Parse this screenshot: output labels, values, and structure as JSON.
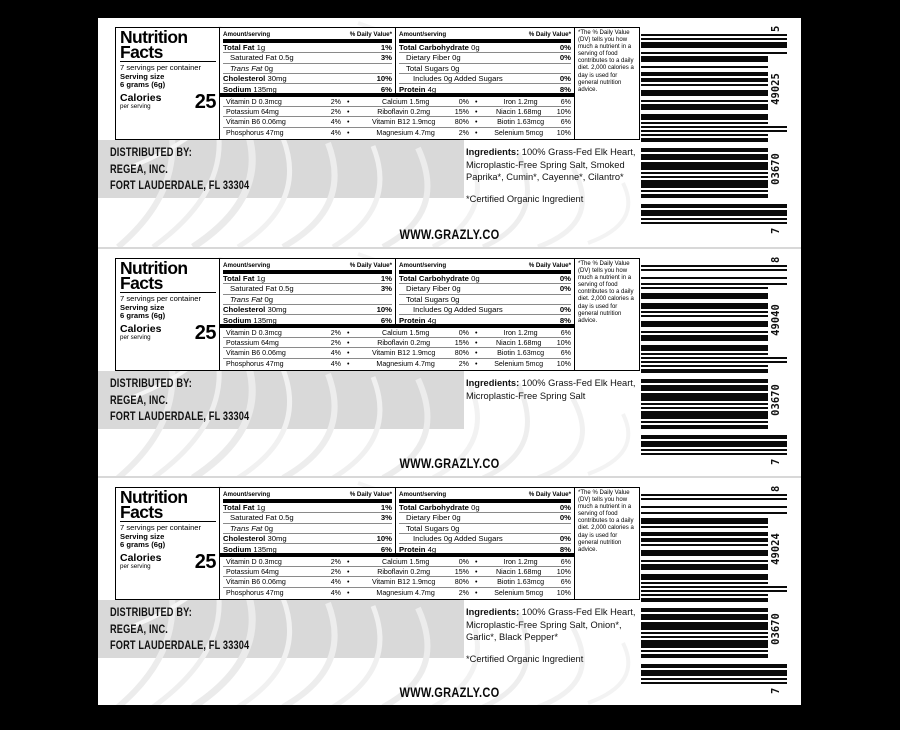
{
  "website": "WWW.GRAZLY.CO",
  "distributor": [
    "DISTRIBUTED BY:",
    "REGEA, INC.",
    "FORT LAUDERDALE, FL 33304"
  ],
  "ingredients_label": "Ingredients:",
  "nutrition": {
    "title1": "Nutrition",
    "title2": "Facts",
    "servings": "7 servings per container",
    "serving_size_label": "Serving size",
    "serving_size_value": "6 grams (6g)",
    "calories_label": "Calories",
    "calories_sub": "per serving",
    "calories_value": "25",
    "header_amount": "Amount/serving",
    "header_dv": "% Daily Value*",
    "left_rows": [
      {
        "name": "Total Fat",
        "amount": "1g",
        "dv": "1%"
      },
      {
        "name": "Saturated Fat",
        "amount": "0.5g",
        "dv": "3%"
      },
      {
        "name": "Trans Fat",
        "amount": "0g",
        "dv": ""
      },
      {
        "name": "Cholesterol",
        "amount": "30mg",
        "dv": "10%"
      },
      {
        "name": "Sodium",
        "amount": "135mg",
        "dv": "6%"
      }
    ],
    "right_rows": [
      {
        "name": "Total Carbohydrate",
        "amount": "0g",
        "dv": "0%"
      },
      {
        "name": "Dietary Fiber",
        "amount": "0g",
        "dv": "0%"
      },
      {
        "name": "Total Sugars",
        "amount": "0g",
        "dv": ""
      },
      {
        "name": "Includes 0g Added Sugars",
        "amount": "",
        "dv": "0%"
      },
      {
        "name": "Protein",
        "amount": "4g",
        "dv": "8%"
      }
    ],
    "micros": [
      [
        "Vitamin D 0.3mcg",
        "2%",
        "Calcium 1.5mg",
        "0%",
        "Iron 1.2mg",
        "6%"
      ],
      [
        "Potassium 64mg",
        "2%",
        "Riboflavin 0.2mg",
        "15%",
        "Niacin 1.68mg",
        "10%"
      ],
      [
        "Vitamin B6 0.06mg",
        "4%",
        "Vitamin B12 1.9mcg",
        "80%",
        "Biotin 1.63mcg",
        "6%"
      ],
      [
        "Phosphorus 47mg",
        "4%",
        "Magnesium 4.7mg",
        "2%",
        "Selenium 5mcg",
        "10%"
      ]
    ],
    "footnote": "*The % Daily Value (DV) tells you how much a nutrient in a serving of food contributes to a daily diet. 2,000 calories a day is used for general nutrition advice."
  },
  "labels": [
    {
      "ingredients": "100% Grass-Fed Elk Heart, Microplastic-Free Spring Salt, Smoked Paprika*, Cumin*, Cayenne*, Cilantro*",
      "organic_note": "*Certified Organic Ingredient",
      "upc_text": "7 03670 49025 5",
      "upc_digits": "703670490255"
    },
    {
      "ingredients": "100% Grass-Fed Elk Heart, Microplastic-Free Spring Salt",
      "organic_note": "",
      "upc_text": "7 03670 49040 8",
      "upc_digits": "703670490408"
    },
    {
      "ingredients": "100% Grass-Fed Elk Heart, Microplastic-Free Spring Salt, Onion*, Garlic*, Black Pepper*",
      "organic_note": "*Certified Organic Ingredient",
      "upc_text": "7 03670 49024 8",
      "upc_digits": "703670490248"
    }
  ]
}
